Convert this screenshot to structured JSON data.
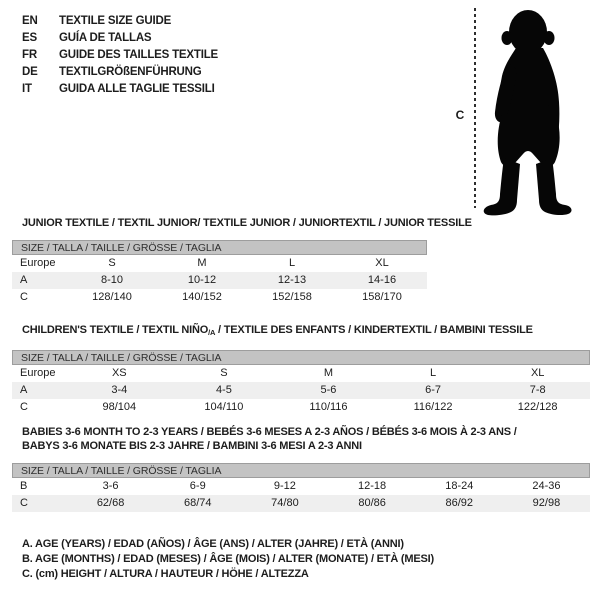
{
  "languages": [
    {
      "code": "EN",
      "label": "TEXTILE SIZE GUIDE"
    },
    {
      "code": "ES",
      "label": "GUÍA DE TALLAS"
    },
    {
      "code": "FR",
      "label": "GUIDE DES TAILLES TEXTILE"
    },
    {
      "code": "DE",
      "label": "TEXTILGRÖßENFÜHRUNG"
    },
    {
      "code": "IT",
      "label": "GUIDA ALLE TAGLIE TESSILI"
    }
  ],
  "figure": {
    "height_label": "C",
    "silhouette": "toddler-silhouette"
  },
  "tables": [
    {
      "name": "junior",
      "heading_lines": [
        [
          {
            "t": "JUNIOR TEXTILE / TEXTIL JUNIOR/ TEXTILE JUNIOR / JUNIORTEXTIL / JUNIOR TESSILE"
          }
        ]
      ],
      "size_header": "SIZE / TALLA / TAILLE / GRÖSSE / TAGLIA",
      "rows": [
        {
          "label": "Europe",
          "values": [
            "S",
            "M",
            "L",
            "XL"
          ],
          "shaded": false
        },
        {
          "label": "A",
          "values": [
            "8-10",
            "10-12",
            "12-13",
            "14-16"
          ],
          "shaded": true
        },
        {
          "label": "C",
          "values": [
            "128/140",
            "140/152",
            "152/158",
            "158/170"
          ],
          "shaded": false
        }
      ]
    },
    {
      "name": "children",
      "heading_lines": [
        [
          {
            "t": "CHILDREN'S TEXTILE / TEXTIL NIÑO"
          },
          {
            "t": "/A",
            "sub": true
          },
          {
            "t": " / TEXTILE DES ENFANTS / KINDERTEXTIL / BAMBINI TESSILE"
          }
        ]
      ],
      "size_header": "SIZE / TALLA / TAILLE / GRÖSSE / TAGLIA",
      "rows": [
        {
          "label": "Europe",
          "values": [
            "XS",
            "S",
            "M",
            "L",
            "XL"
          ],
          "shaded": false
        },
        {
          "label": "A",
          "values": [
            "3-4",
            "4-5",
            "5-6",
            "6-7",
            "7-8"
          ],
          "shaded": true
        },
        {
          "label": "C",
          "values": [
            "98/104",
            "104/110",
            "110/116",
            "116/122",
            "122/128"
          ],
          "shaded": false
        }
      ]
    },
    {
      "name": "babies",
      "heading_lines": [
        [
          {
            "t": "BABIES 3-6 MONTH TO 2-3 YEARS / BEBÉS 3-6 MESES A 2-3 AÑOS / BÉBÉS 3-6 MOIS À 2-3 ANS /"
          }
        ],
        [
          {
            "t": "BABYS 3-6 MONATE BIS 2-3 JAHRE / BAMBINI 3-6 MESI A 2-3 ANNI"
          }
        ]
      ],
      "size_header": "SIZE / TALLA / TAILLE / GRÖSSE / TAGLIA",
      "rows": [
        {
          "label": "B",
          "values": [
            "3-6",
            "6-9",
            "9-12",
            "12-18",
            "18-24",
            "24-36"
          ],
          "shaded": false
        },
        {
          "label": "C",
          "values": [
            "62/68",
            "68/74",
            "74/80",
            "80/86",
            "86/92",
            "92/98"
          ],
          "shaded": true
        }
      ]
    }
  ],
  "footnotes": [
    "A. AGE (YEARS) / EDAD (AÑOS) / ÂGE (ANS) / ALTER (JAHRE) / ETÀ (ANNI)",
    "B. AGE (MONTHS) / EDAD (MESES) / ÂGE (MOIS) / ALTER (MONATE) / ETÀ (MESI)",
    "C. (cm) HEIGHT / ALTURA / HAUTEUR / HÖHE / ALTEZZA"
  ],
  "colors": {
    "text": "#1d1d1d",
    "header_bar": "#c3c3c3",
    "header_bar_border": "#9d9d9d",
    "stripe_row": "#efefef",
    "silhouette": "#060606"
  }
}
